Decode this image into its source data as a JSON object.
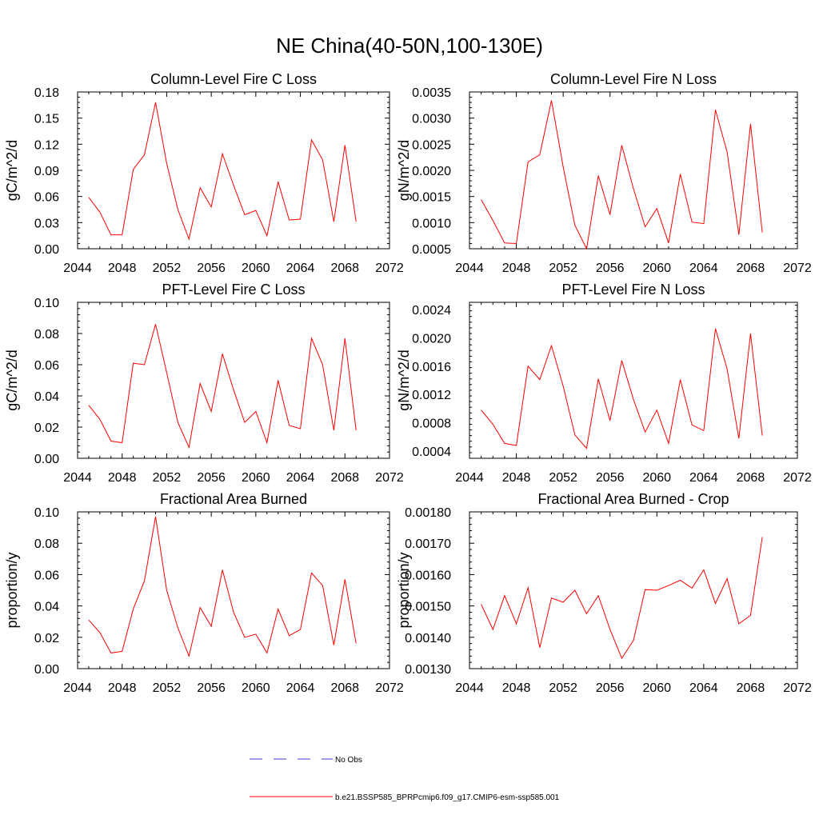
{
  "figure": {
    "title": "NE China(40-50N,100-130E)"
  },
  "legend": {
    "entries": [
      {
        "label": "No Obs",
        "color": "#3b3bd6",
        "style": "dashed"
      },
      {
        "label": "b.e21.BSSP585_BPRPcmip6.f09_g17.CMIP6-esm-ssp585.001",
        "color": "#ff0000",
        "style": "solid"
      }
    ]
  },
  "chart_data": [
    {
      "type": "line",
      "title": "Column-Level Fire C Loss",
      "ylabel": "gC/m^2/d",
      "xlim": [
        2044,
        2072
      ],
      "xticks": [
        2044,
        2048,
        2052,
        2056,
        2060,
        2064,
        2068,
        2072
      ],
      "ylim": [
        0,
        0.18
      ],
      "yticks": [
        "0.00",
        "0.03",
        "0.06",
        "0.09",
        "0.12",
        "0.15",
        "0.18"
      ],
      "color": "#ff0000",
      "x": [
        2045,
        2046,
        2047,
        2048,
        2049,
        2050,
        2051,
        2052,
        2053,
        2054,
        2055,
        2056,
        2057,
        2058,
        2059,
        2060,
        2061,
        2062,
        2063,
        2064,
        2065,
        2066,
        2067,
        2068,
        2069
      ],
      "values": [
        0.059,
        0.042,
        0.016,
        0.016,
        0.091,
        0.108,
        0.168,
        0.098,
        0.045,
        0.011,
        0.07,
        0.048,
        0.109,
        0.073,
        0.039,
        0.044,
        0.015,
        0.077,
        0.033,
        0.034,
        0.125,
        0.102,
        0.031,
        0.119,
        0.031
      ]
    },
    {
      "type": "line",
      "title": "Column-Level Fire N Loss",
      "ylabel": "gN/m^2/d",
      "xlim": [
        2044,
        2072
      ],
      "xticks": [
        2044,
        2048,
        2052,
        2056,
        2060,
        2064,
        2068,
        2072
      ],
      "ylim": [
        0.0005,
        0.0035
      ],
      "yticks": [
        "0.0005",
        "0.0010",
        "0.0015",
        "0.0020",
        "0.0025",
        "0.0030",
        "0.0035"
      ],
      "color": "#ff0000",
      "x": [
        2045,
        2046,
        2047,
        2048,
        2049,
        2050,
        2051,
        2052,
        2053,
        2054,
        2055,
        2056,
        2057,
        2058,
        2059,
        2060,
        2061,
        2062,
        2063,
        2064,
        2065,
        2066,
        2067,
        2068,
        2069
      ],
      "values": [
        0.00144,
        0.00104,
        0.00061,
        0.0006,
        0.00216,
        0.0023,
        0.00334,
        0.00207,
        0.00095,
        0.0005,
        0.0019,
        0.00115,
        0.00248,
        0.00165,
        0.00092,
        0.00127,
        0.00061,
        0.00193,
        0.00101,
        0.00098,
        0.00316,
        0.00235,
        0.00077,
        0.00289,
        0.00081
      ]
    },
    {
      "type": "line",
      "title": "PFT-Level Fire C Loss",
      "ylabel": "gC/m^2/d",
      "xlim": [
        2044,
        2072
      ],
      "xticks": [
        2044,
        2048,
        2052,
        2056,
        2060,
        2064,
        2068,
        2072
      ],
      "ylim": [
        0,
        0.1
      ],
      "yticks": [
        "0.00",
        "0.02",
        "0.04",
        "0.06",
        "0.08",
        "0.10"
      ],
      "color": "#ff0000",
      "x": [
        2045,
        2046,
        2047,
        2048,
        2049,
        2050,
        2051,
        2052,
        2053,
        2054,
        2055,
        2056,
        2057,
        2058,
        2059,
        2060,
        2061,
        2062,
        2063,
        2064,
        2065,
        2066,
        2067,
        2068,
        2069
      ],
      "values": [
        0.034,
        0.025,
        0.011,
        0.01,
        0.061,
        0.06,
        0.086,
        0.055,
        0.023,
        0.007,
        0.048,
        0.03,
        0.067,
        0.044,
        0.023,
        0.03,
        0.01,
        0.05,
        0.021,
        0.019,
        0.077,
        0.06,
        0.018,
        0.077,
        0.018
      ]
    },
    {
      "type": "line",
      "title": "PFT-Level Fire N Loss",
      "ylabel": "gN/m^2/d",
      "xlim": [
        2044,
        2072
      ],
      "xticks": [
        2044,
        2048,
        2052,
        2056,
        2060,
        2064,
        2068,
        2072
      ],
      "ylim": [
        0.0003,
        0.0025
      ],
      "yticks": [
        "0.0004",
        "0.0008",
        "0.0012",
        "0.0016",
        "0.0020",
        "0.0024"
      ],
      "color": "#ff0000",
      "x": [
        2045,
        2046,
        2047,
        2048,
        2049,
        2050,
        2051,
        2052,
        2053,
        2054,
        2055,
        2056,
        2057,
        2058,
        2059,
        2060,
        2061,
        2062,
        2063,
        2064,
        2065,
        2066,
        2067,
        2068,
        2069
      ],
      "values": [
        0.00098,
        0.00078,
        0.00051,
        0.00048,
        0.0016,
        0.00141,
        0.00189,
        0.00132,
        0.00063,
        0.00044,
        0.00142,
        0.00083,
        0.00168,
        0.00113,
        0.00067,
        0.00098,
        0.00051,
        0.00141,
        0.00077,
        0.00069,
        0.00213,
        0.00156,
        0.00058,
        0.00206,
        0.00062
      ]
    },
    {
      "type": "line",
      "title": "Fractional Area Burned",
      "ylabel": "proportion/y",
      "xlim": [
        2044,
        2072
      ],
      "xticks": [
        2044,
        2048,
        2052,
        2056,
        2060,
        2064,
        2068,
        2072
      ],
      "ylim": [
        0,
        0.1
      ],
      "yticks": [
        "0.00",
        "0.02",
        "0.04",
        "0.06",
        "0.08",
        "0.10"
      ],
      "color": "#ff0000",
      "x": [
        2045,
        2046,
        2047,
        2048,
        2049,
        2050,
        2051,
        2052,
        2053,
        2054,
        2055,
        2056,
        2057,
        2058,
        2059,
        2060,
        2061,
        2062,
        2063,
        2064,
        2065,
        2066,
        2067,
        2068,
        2069
      ],
      "values": [
        0.031,
        0.023,
        0.01,
        0.011,
        0.038,
        0.056,
        0.097,
        0.05,
        0.026,
        0.008,
        0.039,
        0.027,
        0.063,
        0.036,
        0.02,
        0.022,
        0.01,
        0.038,
        0.021,
        0.025,
        0.061,
        0.053,
        0.015,
        0.057,
        0.016
      ]
    },
    {
      "type": "line",
      "title": "Fractional Area Burned - Crop",
      "ylabel": "proportion/y",
      "xlim": [
        2044,
        2072
      ],
      "xticks": [
        2044,
        2048,
        2052,
        2056,
        2060,
        2064,
        2068,
        2072
      ],
      "ylim": [
        0.0013,
        0.0018
      ],
      "yticks": [
        "0.00130",
        "0.00140",
        "0.00150",
        "0.00160",
        "0.00170",
        "0.00180"
      ],
      "color": "#ff0000",
      "x": [
        2045,
        2046,
        2047,
        2048,
        2049,
        2050,
        2051,
        2052,
        2053,
        2054,
        2055,
        2056,
        2057,
        2058,
        2059,
        2060,
        2061,
        2062,
        2063,
        2064,
        2065,
        2066,
        2067,
        2068,
        2069
      ],
      "values": [
        0.001505,
        0.001425,
        0.001533,
        0.001443,
        0.001558,
        0.001367,
        0.001525,
        0.001512,
        0.00155,
        0.001475,
        0.001533,
        0.001425,
        0.001333,
        0.00139,
        0.001552,
        0.00155,
        0.001565,
        0.001582,
        0.001557,
        0.001615,
        0.001508,
        0.001587,
        0.001443,
        0.00147,
        0.00172
      ]
    }
  ]
}
